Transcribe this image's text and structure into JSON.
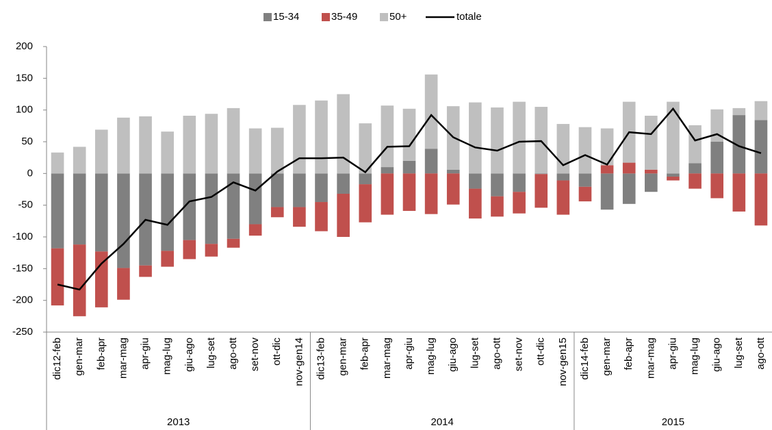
{
  "chart_data": {
    "type": "bar",
    "stacked": true,
    "categories": [
      "dic12-feb",
      "gen-mar",
      "feb-apr",
      "mar-mag",
      "apr-giu",
      "mag-lug",
      "giu-ago",
      "lug-set",
      "ago-ott",
      "set-nov",
      "ott-dic",
      "nov-gen14",
      "dic13-feb",
      "gen-mar",
      "feb-apr",
      "mar-mag",
      "apr-giu",
      "mag-lug",
      "giu-ago",
      "lug-set",
      "ago-ott",
      "set-nov",
      "ott-dic",
      "nov-gen15",
      "dic14-feb",
      "gen-mar",
      "feb-apr",
      "mar-mag",
      "apr-giu",
      "mag-lug",
      "giu-ago",
      "lug-set",
      "ago-ott"
    ],
    "groups": [
      {
        "label": "2013",
        "size": 12
      },
      {
        "label": "2014",
        "size": 12
      },
      {
        "label": "2015",
        "size": 9
      }
    ],
    "series": [
      {
        "name": "15-34",
        "kind": "bar",
        "color": "#808080",
        "values": [
          -118,
          -112,
          -123,
          -149,
          -145,
          -122,
          -105,
          -111,
          -103,
          -80,
          -53,
          -53,
          -45,
          -32,
          -17,
          10,
          20,
          39,
          6,
          -24,
          -36,
          -29,
          -1,
          -11,
          -21,
          -57,
          -48,
          -29,
          -5,
          16,
          50,
          92,
          84
        ]
      },
      {
        "name": "35-49",
        "kind": "bar",
        "color": "#c0504d",
        "values": [
          -90,
          -113,
          -88,
          -50,
          -18,
          -25,
          -30,
          -20,
          -14,
          -18,
          -16,
          -31,
          -46,
          -68,
          -60,
          -65,
          -59,
          -64,
          -49,
          -47,
          -32,
          -34,
          -53,
          -54,
          -23,
          13,
          17,
          6,
          -6,
          -24,
          -39,
          -60,
          -82
        ]
      },
      {
        "name": "50+",
        "kind": "bar",
        "color": "#bfbfbf",
        "values": [
          33,
          42,
          69,
          88,
          90,
          66,
          91,
          94,
          103,
          71,
          72,
          108,
          115,
          125,
          79,
          97,
          82,
          117,
          100,
          112,
          104,
          113,
          105,
          78,
          73,
          58,
          96,
          85,
          113,
          60,
          51,
          11,
          30
        ]
      },
      {
        "name": "totale",
        "kind": "line",
        "color": "#000000",
        "values": [
          -175,
          -183,
          -142,
          -111,
          -73,
          -81,
          -44,
          -37,
          -14,
          -27,
          3,
          24,
          24,
          25,
          2,
          42,
          43,
          92,
          57,
          41,
          36,
          50,
          51,
          13,
          29,
          14,
          65,
          62,
          102,
          52,
          62,
          43,
          32
        ]
      }
    ],
    "ylim": [
      -250,
      200
    ],
    "yticks": [
      -250,
      -200,
      -150,
      -100,
      -50,
      0,
      50,
      100,
      150,
      200
    ],
    "grid": false
  }
}
